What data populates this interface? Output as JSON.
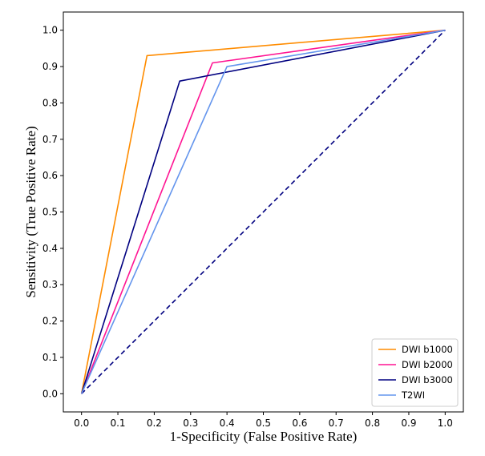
{
  "chart_data": {
    "type": "line",
    "title": "",
    "xlabel": "1-Specificity (False Positive Rate)",
    "ylabel": "Sensitivity (True Positive Rate)",
    "xlim": [
      -0.05,
      1.05
    ],
    "ylim": [
      -0.05,
      1.05
    ],
    "xticks": [
      0.0,
      0.1,
      0.2,
      0.3,
      0.4,
      0.5,
      0.6,
      0.7,
      0.8,
      0.9,
      1.0
    ],
    "yticks": [
      0.0,
      0.1,
      0.2,
      0.3,
      0.4,
      0.5,
      0.6,
      0.7,
      0.8,
      0.9,
      1.0
    ],
    "xtick_labels": [
      "0.0",
      "0.1",
      "0.2",
      "0.3",
      "0.4",
      "0.5",
      "0.6",
      "0.7",
      "0.8",
      "0.9",
      "1.0"
    ],
    "ytick_labels": [
      "0.0",
      "0.1",
      "0.2",
      "0.3",
      "0.4",
      "0.5",
      "0.6",
      "0.7",
      "0.8",
      "0.9",
      "1.0"
    ],
    "grid": false,
    "legend_position": "bottom-right",
    "series": [
      {
        "name": "DWI b1000",
        "color": "#ff8c00",
        "x": [
          0,
          0.18,
          1
        ],
        "y": [
          0,
          0.93,
          1
        ]
      },
      {
        "name": "DWI b2000",
        "color": "#ff1493",
        "x": [
          0,
          0.36,
          1
        ],
        "y": [
          0,
          0.91,
          1
        ]
      },
      {
        "name": "DWI b3000",
        "color": "#000080",
        "x": [
          0,
          0.27,
          1
        ],
        "y": [
          0,
          0.86,
          1
        ]
      },
      {
        "name": "T2WI",
        "color": "#6495ed",
        "x": [
          0,
          0.4,
          1
        ],
        "y": [
          0,
          0.9,
          1
        ]
      }
    ],
    "reference_line": {
      "x": [
        0,
        1
      ],
      "y": [
        0,
        1
      ],
      "color": "#000080",
      "style": "dashed"
    }
  }
}
